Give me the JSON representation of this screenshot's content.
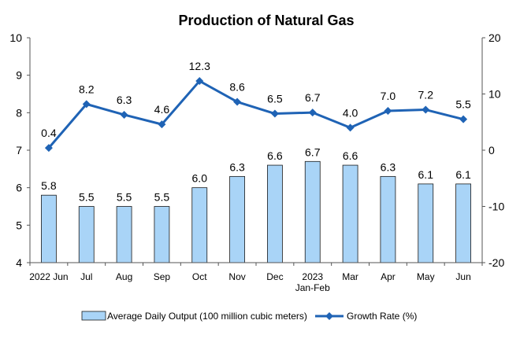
{
  "chart_data": {
    "type": "bar",
    "title": "Production of Natural Gas",
    "categories": [
      "2022 Jun",
      "Jul",
      "Aug",
      "Sep",
      "Oct",
      "Nov",
      "Dec",
      "2023 Jan-Feb",
      "Mar",
      "Apr",
      "May",
      "Jun"
    ],
    "category_lines": [
      [
        "2022 Jun"
      ],
      [
        "Jul"
      ],
      [
        "Aug"
      ],
      [
        "Sep"
      ],
      [
        "Oct"
      ],
      [
        "Nov"
      ],
      [
        "Dec"
      ],
      [
        "2023",
        "Jan-Feb"
      ],
      [
        "Mar"
      ],
      [
        "Apr"
      ],
      [
        "May"
      ],
      [
        "Jun"
      ]
    ],
    "series": [
      {
        "name": "Average Daily Output (100 million cubic meters)",
        "type": "bar",
        "axis": "left",
        "color": "#a9d4f7",
        "values": [
          5.8,
          5.5,
          5.5,
          5.5,
          6.0,
          6.3,
          6.6,
          6.7,
          6.6,
          6.3,
          6.1,
          6.1
        ],
        "labels": [
          "5.8",
          "5.5",
          "5.5",
          "5.5",
          "6.0",
          "6.3",
          "6.6",
          "6.7",
          "6.6",
          "6.3",
          "6.1",
          "6.1"
        ]
      },
      {
        "name": "Growth Rate (%)",
        "type": "line",
        "axis": "right",
        "color": "#1f63b5",
        "values": [
          0.4,
          8.2,
          6.3,
          4.6,
          12.3,
          8.6,
          6.5,
          6.7,
          4.0,
          7.0,
          7.2,
          5.5
        ],
        "labels": [
          "0.4",
          "8.2",
          "6.3",
          "4.6",
          "12.3",
          "8.6",
          "6.5",
          "6.7",
          "4.0",
          "7.0",
          "7.2",
          "5.5"
        ]
      }
    ],
    "y_left": {
      "min": 4,
      "max": 10,
      "ticks": [
        "4",
        "5",
        "6",
        "7",
        "8",
        "9",
        "10"
      ]
    },
    "y_right": {
      "min": -20,
      "max": 20,
      "ticks": [
        "-20",
        "-10",
        "0",
        "10",
        "20"
      ]
    },
    "grid": false,
    "legend_position": "bottom"
  }
}
